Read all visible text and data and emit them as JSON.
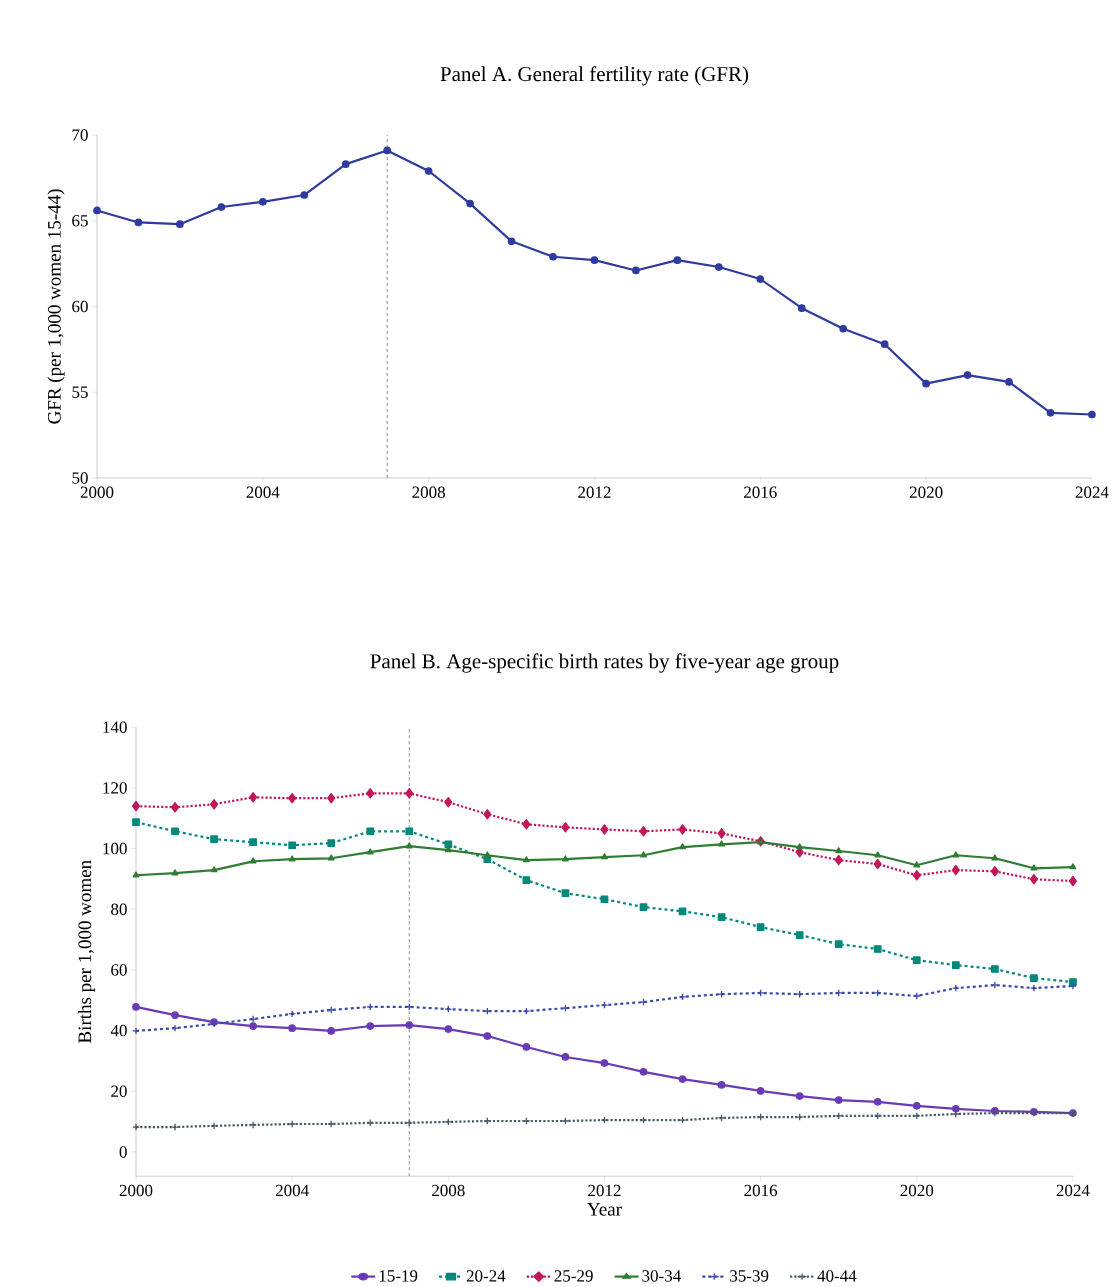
{
  "chart_data": [
    {
      "type": "line",
      "title": "Panel A. General fertility rate (GFR)",
      "ylabel": "GFR (per 1,000 women 15-44)",
      "x": [
        2000,
        2001,
        2002,
        2003,
        2004,
        2005,
        2006,
        2007,
        2008,
        2009,
        2010,
        2011,
        2012,
        2013,
        2014,
        2015,
        2016,
        2017,
        2018,
        2019,
        2020,
        2021,
        2022,
        2023,
        2024
      ],
      "xlim": [
        2000,
        2024
      ],
      "xticks": [
        2000,
        2004,
        2008,
        2012,
        2016,
        2020,
        2024
      ],
      "ylim": [
        50,
        70
      ],
      "yticks": [
        50,
        55,
        60,
        65,
        70
      ],
      "marker": "circle",
      "line_style": "solid",
      "series": [
        {
          "color": "#2e3a9e",
          "values": [
            65.6,
            64.9,
            64.8,
            65.8,
            66.1,
            66.5,
            68.3,
            69.1,
            67.9,
            66.0,
            63.8,
            62.9,
            62.7,
            62.1,
            62.7,
            62.3,
            61.6,
            59.9,
            58.7,
            57.8,
            55.5,
            56.0,
            55.6,
            53.8,
            53.7
          ]
        }
      ],
      "ref_lines": [
        {
          "axis": "x",
          "value": 2007,
          "color": "#8a8a8a",
          "line_style": "dashed"
        }
      ]
    },
    {
      "type": "line",
      "title": "Panel B. Age-specific birth rates by five-year age group",
      "xlabel": "Year",
      "ylabel": "Births per 1,000 women",
      "x": [
        2000,
        2001,
        2002,
        2003,
        2004,
        2005,
        2006,
        2007,
        2008,
        2009,
        2010,
        2011,
        2012,
        2013,
        2014,
        2015,
        2016,
        2017,
        2018,
        2019,
        2020,
        2021,
        2022,
        2023,
        2024
      ],
      "xlim": [
        2000,
        2024
      ],
      "xticks": [
        2000,
        2004,
        2008,
        2012,
        2016,
        2020,
        2024
      ],
      "ylim": [
        -8,
        140
      ],
      "yticks": [
        0,
        20,
        40,
        60,
        80,
        100,
        120,
        140
      ],
      "legend": "bottom",
      "series": [
        {
          "name": "15-19",
          "color": "#6a3ab5",
          "marker": "circle",
          "line_style": "solid",
          "values": [
            47.8,
            45.1,
            42.8,
            41.5,
            40.8,
            39.9,
            41.5,
            41.8,
            40.5,
            38.2,
            34.6,
            31.3,
            29.3,
            26.4,
            24.0,
            22.1,
            20.1,
            18.4,
            17.1,
            16.5,
            15.2,
            14.2,
            13.5,
            13.2,
            12.8
          ]
        },
        {
          "name": "20-24",
          "color": "#00897b",
          "marker": "square",
          "line_style": "dashed",
          "values": [
            108.7,
            105.7,
            103.1,
            102.1,
            101.1,
            101.8,
            105.7,
            105.7,
            101.4,
            96.5,
            89.6,
            85.3,
            83.3,
            80.7,
            79.3,
            77.4,
            74.1,
            71.5,
            68.5,
            66.9,
            63.2,
            61.6,
            60.3,
            57.3,
            56.0
          ]
        },
        {
          "name": "25-29",
          "color": "#c2185b",
          "marker": "diamond",
          "line_style": "dotted",
          "values": [
            114.0,
            113.6,
            114.6,
            116.9,
            116.6,
            116.6,
            118.2,
            118.2,
            115.3,
            111.3,
            108.0,
            107.0,
            106.3,
            105.7,
            106.3,
            105.0,
            102.4,
            98.8,
            96.2,
            94.9,
            91.2,
            92.9,
            92.5,
            89.9,
            89.3
          ]
        },
        {
          "name": "30-34",
          "color": "#2e7d32",
          "marker": "triangle",
          "line_style": "solid",
          "values": [
            91.2,
            91.9,
            92.9,
            95.8,
            96.5,
            96.8,
            98.8,
            100.8,
            99.5,
            97.8,
            96.2,
            96.5,
            97.2,
            97.8,
            100.5,
            101.4,
            102.1,
            100.5,
            99.2,
            97.8,
            94.5,
            97.8,
            96.8,
            93.5,
            93.9
          ]
        },
        {
          "name": "35-39",
          "color": "#3949ab",
          "marker": "cross",
          "line_style": "dashed",
          "values": [
            39.9,
            40.8,
            42.2,
            43.8,
            45.5,
            46.8,
            47.8,
            47.8,
            47.1,
            46.4,
            46.4,
            47.4,
            48.4,
            49.4,
            51.1,
            52.0,
            52.4,
            52.0,
            52.4,
            52.4,
            51.4,
            54.0,
            55.0,
            54.0,
            54.7
          ]
        },
        {
          "name": "40-44",
          "color": "#455a64",
          "marker": "cross",
          "line_style": "dotted",
          "values": [
            8.2,
            8.2,
            8.6,
            8.9,
            9.2,
            9.2,
            9.6,
            9.6,
            9.9,
            10.2,
            10.2,
            10.2,
            10.5,
            10.5,
            10.5,
            11.2,
            11.5,
            11.5,
            11.9,
            11.9,
            11.9,
            12.5,
            12.8,
            12.8,
            12.8
          ]
        }
      ],
      "ref_lines": [
        {
          "axis": "x",
          "value": 2007,
          "color": "#8a8a8a",
          "line_style": "dashed"
        }
      ]
    }
  ]
}
